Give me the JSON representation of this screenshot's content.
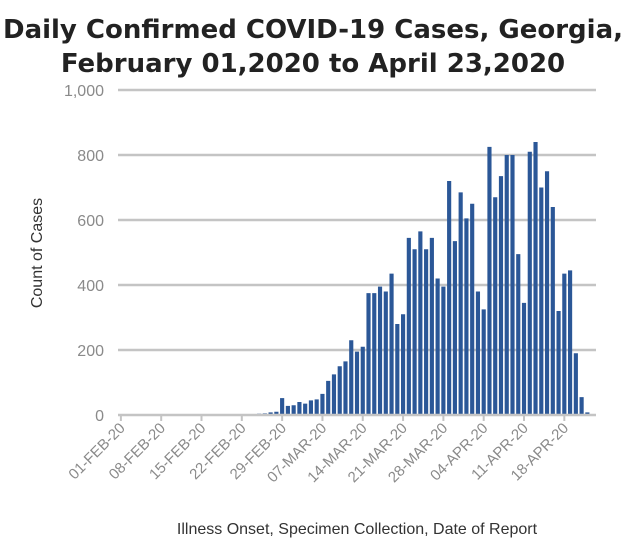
{
  "chart_data": {
    "type": "bar",
    "title_line1": "Daily Confirmed COVID-19 Cases, Georgia,",
    "title_line2": "February 01,2020  to  April 23,2020",
    "xlabel": "Illness Onset, Specimen Collection, Date of Report",
    "ylabel": "Count of Cases",
    "ylim": [
      0,
      1000
    ],
    "yticks": [
      0,
      200,
      400,
      600,
      800,
      1000
    ],
    "ytick_labels": [
      "0",
      "200",
      "400",
      "600",
      "800",
      "1,000"
    ],
    "grid": true,
    "legend": "none",
    "bar_color": "#2b5797",
    "grid_color": "#c4c4c4",
    "xtick_labels": [
      "01-FEB-20",
      "08-FEB-20",
      "15-FEB-20",
      "22-FEB-20",
      "29-FEB-20",
      "07-MAR-20",
      "14-MAR-20",
      "21-MAR-20",
      "28-MAR-20",
      "04-APR-20",
      "11-APR-20",
      "18-APR-20"
    ],
    "categories": [
      "01-FEB-20",
      "02-FEB-20",
      "03-FEB-20",
      "04-FEB-20",
      "05-FEB-20",
      "06-FEB-20",
      "07-FEB-20",
      "08-FEB-20",
      "09-FEB-20",
      "10-FEB-20",
      "11-FEB-20",
      "12-FEB-20",
      "13-FEB-20",
      "14-FEB-20",
      "15-FEB-20",
      "16-FEB-20",
      "17-FEB-20",
      "18-FEB-20",
      "19-FEB-20",
      "20-FEB-20",
      "21-FEB-20",
      "22-FEB-20",
      "23-FEB-20",
      "24-FEB-20",
      "25-FEB-20",
      "26-FEB-20",
      "27-FEB-20",
      "28-FEB-20",
      "29-FEB-20",
      "01-MAR-20",
      "02-MAR-20",
      "03-MAR-20",
      "04-MAR-20",
      "05-MAR-20",
      "06-MAR-20",
      "07-MAR-20",
      "08-MAR-20",
      "09-MAR-20",
      "10-MAR-20",
      "11-MAR-20",
      "12-MAR-20",
      "13-MAR-20",
      "14-MAR-20",
      "15-MAR-20",
      "16-MAR-20",
      "17-MAR-20",
      "18-MAR-20",
      "19-MAR-20",
      "20-MAR-20",
      "21-MAR-20",
      "22-MAR-20",
      "23-MAR-20",
      "24-MAR-20",
      "25-MAR-20",
      "26-MAR-20",
      "27-MAR-20",
      "28-MAR-20",
      "29-MAR-20",
      "30-MAR-20",
      "31-MAR-20",
      "01-APR-20",
      "02-APR-20",
      "03-APR-20",
      "04-APR-20",
      "05-APR-20",
      "06-APR-20",
      "07-APR-20",
      "08-APR-20",
      "09-APR-20",
      "10-APR-20",
      "11-APR-20",
      "12-APR-20",
      "13-APR-20",
      "14-APR-20",
      "15-APR-20",
      "16-APR-20",
      "17-APR-20",
      "18-APR-20",
      "19-APR-20",
      "20-APR-20",
      "21-APR-20",
      "22-APR-20",
      "23-APR-20"
    ],
    "values": [
      0,
      0,
      0,
      0,
      0,
      0,
      0,
      0,
      0,
      0,
      0,
      0,
      0,
      0,
      0,
      0,
      0,
      0,
      0,
      0,
      0,
      1,
      2,
      3,
      4,
      5,
      8,
      10,
      52,
      28,
      30,
      40,
      35,
      45,
      48,
      65,
      105,
      125,
      150,
      165,
      230,
      195,
      210,
      375,
      375,
      395,
      380,
      435,
      280,
      310,
      545,
      510,
      565,
      510,
      545,
      420,
      395,
      720,
      535,
      685,
      605,
      650,
      380,
      325,
      825,
      670,
      735,
      800,
      800,
      495,
      345,
      810,
      840,
      700,
      750,
      640,
      320,
      435,
      445,
      190,
      55,
      8,
      0
    ]
  }
}
